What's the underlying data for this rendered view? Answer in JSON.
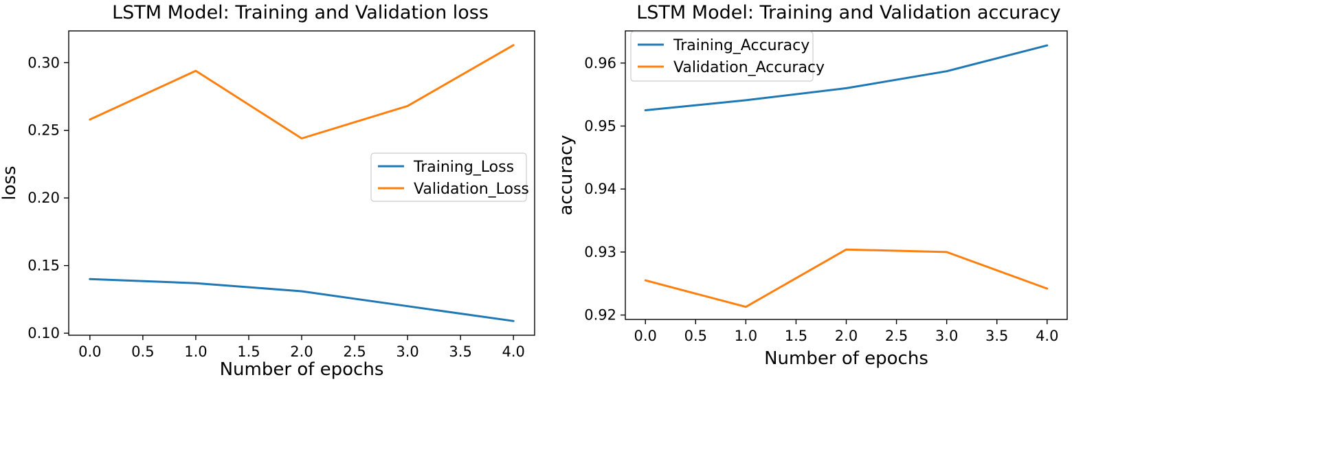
{
  "chart_data": [
    {
      "type": "line",
      "title": "LSTM Model: Training and Validation loss",
      "xlabel": "Number of epochs",
      "ylabel": "loss",
      "x": [
        0,
        1,
        2,
        3,
        4
      ],
      "xticks": [
        "0.0",
        "0.5",
        "1.0",
        "1.5",
        "2.0",
        "2.5",
        "3.0",
        "3.5",
        "4.0"
      ],
      "xtick_values": [
        0,
        0.5,
        1,
        1.5,
        2,
        2.5,
        3,
        3.5,
        4
      ],
      "yticks": [
        "0.10",
        "0.15",
        "0.20",
        "0.25",
        "0.30"
      ],
      "ytick_values": [
        0.1,
        0.15,
        0.2,
        0.25,
        0.3
      ],
      "xlim": [
        -0.2,
        4.2
      ],
      "ylim": [
        0.0985,
        0.3235
      ],
      "grid": false,
      "legend_position": "center-right",
      "series": [
        {
          "name": "Training_Loss",
          "color": "#1f77b4",
          "values": [
            0.14,
            0.137,
            0.131,
            0.12,
            0.109
          ]
        },
        {
          "name": "Validation_Loss",
          "color": "#ff7f0e",
          "values": [
            0.258,
            0.294,
            0.244,
            0.268,
            0.313
          ]
        }
      ]
    },
    {
      "type": "line",
      "title": "LSTM Model: Training and Validation accuracy",
      "xlabel": "Number of epochs",
      "ylabel": "accuracy",
      "x": [
        0,
        1,
        2,
        3,
        4
      ],
      "xticks": [
        "0.0",
        "0.5",
        "1.0",
        "1.5",
        "2.0",
        "2.5",
        "3.0",
        "3.5",
        "4.0"
      ],
      "xtick_values": [
        0,
        0.5,
        1,
        1.5,
        2,
        2.5,
        3,
        3.5,
        4
      ],
      "yticks": [
        "0.92",
        "0.93",
        "0.94",
        "0.95",
        "0.96"
      ],
      "ytick_values": [
        0.92,
        0.93,
        0.94,
        0.95,
        0.96
      ],
      "xlim": [
        -0.2,
        4.2
      ],
      "ylim": [
        0.9193,
        0.9651
      ],
      "grid": false,
      "legend_position": "upper-left",
      "series": [
        {
          "name": "Training_Accuracy",
          "color": "#1f77b4",
          "values": [
            0.9525,
            0.9541,
            0.956,
            0.9587,
            0.9628
          ]
        },
        {
          "name": "Validation_Accuracy",
          "color": "#ff7f0e",
          "values": [
            0.9255,
            0.9213,
            0.9304,
            0.93,
            0.9242
          ]
        }
      ]
    }
  ]
}
